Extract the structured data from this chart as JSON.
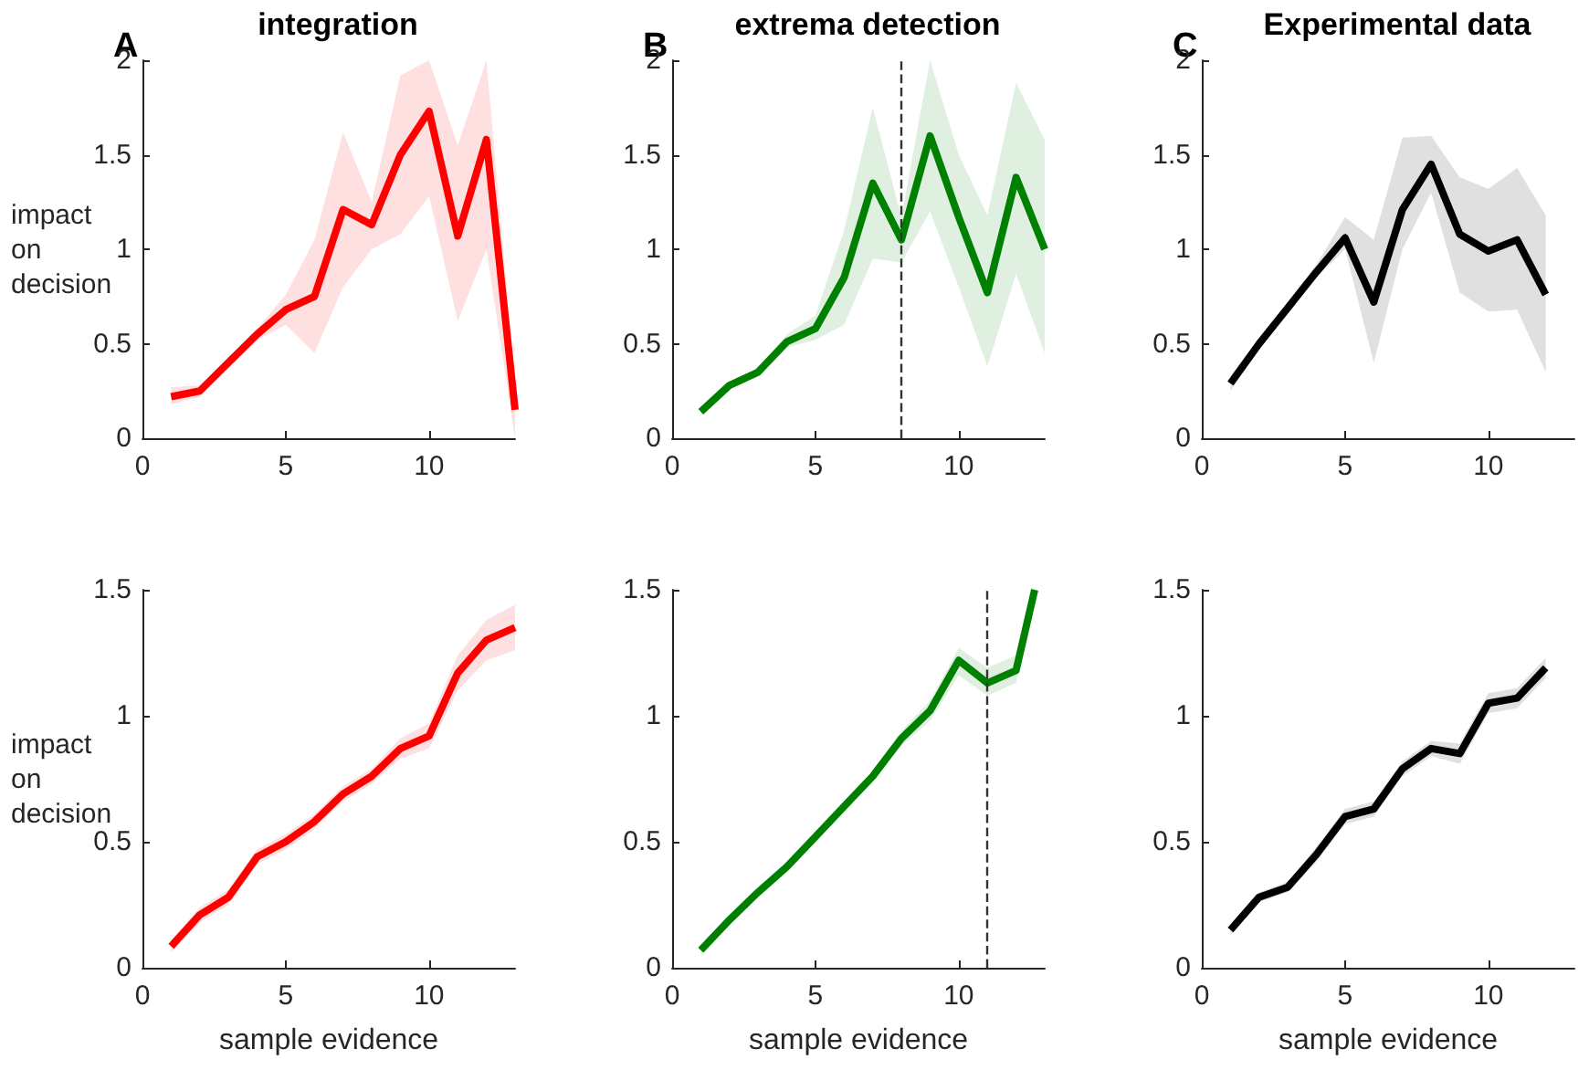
{
  "chart_data": [
    {
      "type": "line",
      "title": "integration",
      "ylabel": "impact on decision",
      "annotations": [
        "A"
      ],
      "x": [
        1,
        2,
        3,
        4,
        5,
        6,
        7,
        8,
        9,
        10,
        11,
        12,
        13
      ],
      "xlim": [
        0,
        13
      ],
      "xticks": [
        0,
        5,
        10
      ],
      "ylim": [
        0,
        2
      ],
      "yticks": [
        0,
        0.5,
        1,
        1.5,
        2
      ],
      "series": [
        {
          "color": "#ff0000",
          "values": [
            0.22,
            0.25,
            0.4,
            0.55,
            0.68,
            0.75,
            1.21,
            1.13,
            1.5,
            1.73,
            1.07,
            1.58,
            0.15
          ],
          "lower": [
            0.18,
            0.22,
            0.37,
            0.52,
            0.6,
            0.45,
            0.8,
            1.0,
            1.08,
            1.28,
            0.62,
            1.0,
            0.0
          ],
          "upper": [
            0.27,
            0.28,
            0.43,
            0.58,
            0.76,
            1.05,
            1.62,
            1.25,
            1.92,
            2.0,
            1.55,
            2.0,
            0.3
          ]
        }
      ]
    },
    {
      "type": "line",
      "title": "extrema detection",
      "annotations": [
        "B"
      ],
      "x": [
        1,
        2,
        3,
        4,
        5,
        6,
        7,
        8,
        9,
        10,
        11,
        12,
        13
      ],
      "xlim": [
        0,
        13
      ],
      "xticks": [
        0,
        5,
        10
      ],
      "ylim": [
        0,
        2
      ],
      "yticks": [
        0,
        0.5,
        1,
        1.5,
        2
      ],
      "series": [
        {
          "color": "#008000",
          "values": [
            0.14,
            0.28,
            0.35,
            0.51,
            0.58,
            0.85,
            1.35,
            1.05,
            1.6,
            1.17,
            0.77,
            1.38,
            1.0
          ],
          "lower": [
            0.12,
            0.26,
            0.33,
            0.48,
            0.52,
            0.6,
            0.95,
            0.93,
            1.2,
            0.8,
            0.38,
            0.87,
            0.45
          ],
          "upper": [
            0.16,
            0.3,
            0.37,
            0.55,
            0.65,
            1.1,
            1.75,
            1.17,
            2.0,
            1.5,
            1.18,
            1.88,
            1.58
          ]
        }
      ],
      "ref_lines": [
        {
          "axis": "x",
          "value": 8,
          "color": "#333333",
          "line_style": "dashed"
        }
      ]
    },
    {
      "type": "line",
      "title": "Experimental data",
      "annotations": [
        "C"
      ],
      "x": [
        1,
        2,
        3,
        4,
        5,
        6,
        7,
        8,
        9,
        10,
        11,
        12
      ],
      "xlim": [
        0,
        13
      ],
      "xticks": [
        0,
        5,
        10
      ],
      "ylim": [
        0,
        2
      ],
      "yticks": [
        0,
        0.5,
        1,
        1.5,
        2
      ],
      "series": [
        {
          "color": "#000000",
          "values": [
            0.29,
            0.5,
            0.69,
            0.88,
            1.06,
            0.72,
            1.21,
            1.45,
            1.08,
            0.99,
            1.05,
            0.76
          ],
          "lower": [
            0.25,
            0.47,
            0.66,
            0.85,
            1.0,
            0.4,
            1.0,
            1.3,
            0.77,
            0.67,
            0.68,
            0.35
          ],
          "upper": [
            0.33,
            0.53,
            0.72,
            0.92,
            1.17,
            1.05,
            1.59,
            1.6,
            1.38,
            1.32,
            1.43,
            1.18
          ]
        }
      ]
    },
    {
      "type": "line",
      "ylabel": "impact on decision",
      "xlabel": "sample evidence",
      "x": [
        1,
        2,
        3,
        4,
        5,
        6,
        7,
        8,
        9,
        10,
        11,
        12,
        13
      ],
      "xlim": [
        0,
        13
      ],
      "xticks": [
        0,
        5,
        10
      ],
      "ylim": [
        0,
        1.5
      ],
      "yticks": [
        0,
        0.5,
        1,
        1.5
      ],
      "series": [
        {
          "color": "#ff0000",
          "values": [
            0.085,
            0.21,
            0.28,
            0.44,
            0.5,
            0.58,
            0.69,
            0.76,
            0.87,
            0.92,
            1.17,
            1.3,
            1.35
          ],
          "lower": [
            0.06,
            0.18,
            0.25,
            0.41,
            0.47,
            0.55,
            0.66,
            0.73,
            0.83,
            0.87,
            1.1,
            1.22,
            1.26
          ],
          "upper": [
            0.11,
            0.24,
            0.31,
            0.47,
            0.53,
            0.61,
            0.72,
            0.79,
            0.91,
            0.97,
            1.24,
            1.38,
            1.44
          ]
        }
      ]
    },
    {
      "type": "line",
      "xlabel": "sample evidence",
      "x": [
        1,
        2,
        3,
        4,
        5,
        6,
        7,
        8,
        9,
        10,
        11,
        12,
        12.65
      ],
      "xlim": [
        0,
        13
      ],
      "xticks": [
        0,
        5,
        10
      ],
      "ylim": [
        0,
        1.5
      ],
      "yticks": [
        0,
        0.5,
        1,
        1.5
      ],
      "series": [
        {
          "color": "#008000",
          "values": [
            0.07,
            0.19,
            0.3,
            0.4,
            0.52,
            0.64,
            0.76,
            0.91,
            1.02,
            1.22,
            1.13,
            1.18,
            1.5
          ],
          "lower": [
            0.05,
            0.17,
            0.28,
            0.38,
            0.5,
            0.62,
            0.74,
            0.88,
            0.98,
            1.16,
            1.08,
            1.13,
            1.48
          ],
          "upper": [
            0.09,
            0.21,
            0.32,
            0.42,
            0.54,
            0.66,
            0.78,
            0.94,
            1.06,
            1.27,
            1.19,
            1.24,
            1.5
          ]
        }
      ],
      "ref_lines": [
        {
          "axis": "x",
          "value": 11,
          "color": "#333333",
          "line_style": "dashed"
        }
      ]
    },
    {
      "type": "line",
      "xlabel": "sample evidence",
      "x": [
        1,
        2,
        3,
        4,
        5,
        6,
        7,
        8,
        9,
        10,
        11,
        12
      ],
      "xlim": [
        0,
        13
      ],
      "xticks": [
        0,
        5,
        10
      ],
      "ylim": [
        0,
        1.5
      ],
      "yticks": [
        0,
        0.5,
        1,
        1.5
      ],
      "series": [
        {
          "color": "#000000",
          "values": [
            0.15,
            0.28,
            0.32,
            0.45,
            0.6,
            0.63,
            0.79,
            0.87,
            0.85,
            1.05,
            1.07,
            1.19
          ],
          "lower": [
            0.13,
            0.26,
            0.3,
            0.42,
            0.57,
            0.6,
            0.76,
            0.84,
            0.81,
            1.01,
            1.03,
            1.15
          ],
          "upper": [
            0.17,
            0.3,
            0.34,
            0.48,
            0.63,
            0.66,
            0.82,
            0.9,
            0.89,
            1.09,
            1.11,
            1.23
          ]
        }
      ]
    }
  ]
}
